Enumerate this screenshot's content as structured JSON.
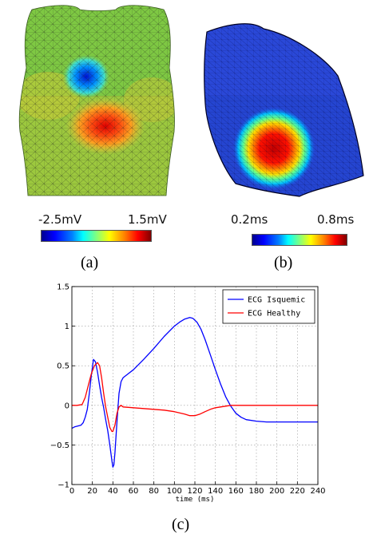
{
  "panel_a": {
    "label": "(a)",
    "colorbar": {
      "min_label": "-2.5mV",
      "max_label": "1.5mV"
    }
  },
  "panel_b": {
    "label": "(b)",
    "colorbar": {
      "min_label": "0.2ms",
      "max_label": "0.8ms"
    }
  },
  "panel_c": {
    "label": "(c)"
  },
  "chart_data": {
    "type": "line",
    "title": "",
    "xlabel": "time (ms)",
    "ylabel": "",
    "xlim": [
      0,
      240
    ],
    "ylim": [
      -1,
      1.5
    ],
    "grid": true,
    "legend_position": "top-right",
    "xticks": [
      0,
      20,
      40,
      60,
      80,
      100,
      120,
      140,
      160,
      180,
      200,
      220,
      240
    ],
    "yticks": [
      -1,
      -0.5,
      0,
      0.5,
      1,
      1.5
    ],
    "ytick_labels": [
      "−1",
      "−0.5",
      "0",
      "0.5",
      "1",
      "1.5"
    ],
    "series": [
      {
        "name": "ECG Isquemic",
        "color": "#0000ff",
        "x": [
          0,
          3,
          6,
          9,
          11,
          13,
          15,
          17,
          19,
          21,
          23,
          25,
          27,
          29,
          31,
          33,
          35,
          37,
          39,
          40,
          41,
          42,
          44,
          46,
          48,
          50,
          55,
          60,
          70,
          80,
          90,
          100,
          105,
          110,
          115,
          118,
          122,
          126,
          130,
          135,
          140,
          145,
          150,
          155,
          160,
          165,
          170,
          180,
          190,
          200,
          210,
          220,
          230,
          240
        ],
        "y": [
          -0.29,
          -0.27,
          -0.26,
          -0.25,
          -0.22,
          -0.15,
          -0.05,
          0.15,
          0.38,
          0.58,
          0.55,
          0.42,
          0.25,
          0.1,
          -0.03,
          -0.18,
          -0.32,
          -0.5,
          -0.7,
          -0.78,
          -0.75,
          -0.6,
          -0.2,
          0.15,
          0.3,
          0.35,
          0.4,
          0.45,
          0.58,
          0.72,
          0.87,
          1.0,
          1.05,
          1.09,
          1.11,
          1.1,
          1.05,
          0.96,
          0.83,
          0.64,
          0.45,
          0.27,
          0.11,
          -0.01,
          -0.1,
          -0.15,
          -0.18,
          -0.2,
          -0.21,
          -0.21,
          -0.21,
          -0.21,
          -0.21,
          -0.21
        ]
      },
      {
        "name": "ECG Healthy",
        "color": "#ff0000",
        "x": [
          0,
          5,
          10,
          13,
          16,
          19,
          22,
          25,
          27,
          29,
          31,
          33,
          35,
          37,
          39,
          40,
          42,
          44,
          46,
          48,
          50,
          60,
          70,
          80,
          90,
          100,
          110,
          115,
          120,
          125,
          130,
          135,
          140,
          145,
          150,
          155,
          160,
          165,
          170,
          180,
          200,
          220,
          240
        ],
        "y": [
          0,
          0,
          0.01,
          0.1,
          0.25,
          0.4,
          0.5,
          0.54,
          0.5,
          0.35,
          0.15,
          -0.02,
          -0.15,
          -0.28,
          -0.33,
          -0.33,
          -0.25,
          -0.1,
          -0.02,
          0,
          -0.02,
          -0.03,
          -0.04,
          -0.05,
          -0.06,
          -0.08,
          -0.11,
          -0.13,
          -0.13,
          -0.11,
          -0.08,
          -0.05,
          -0.03,
          -0.02,
          -0.01,
          0,
          0,
          0,
          0,
          0,
          0,
          0,
          0
        ]
      }
    ]
  }
}
